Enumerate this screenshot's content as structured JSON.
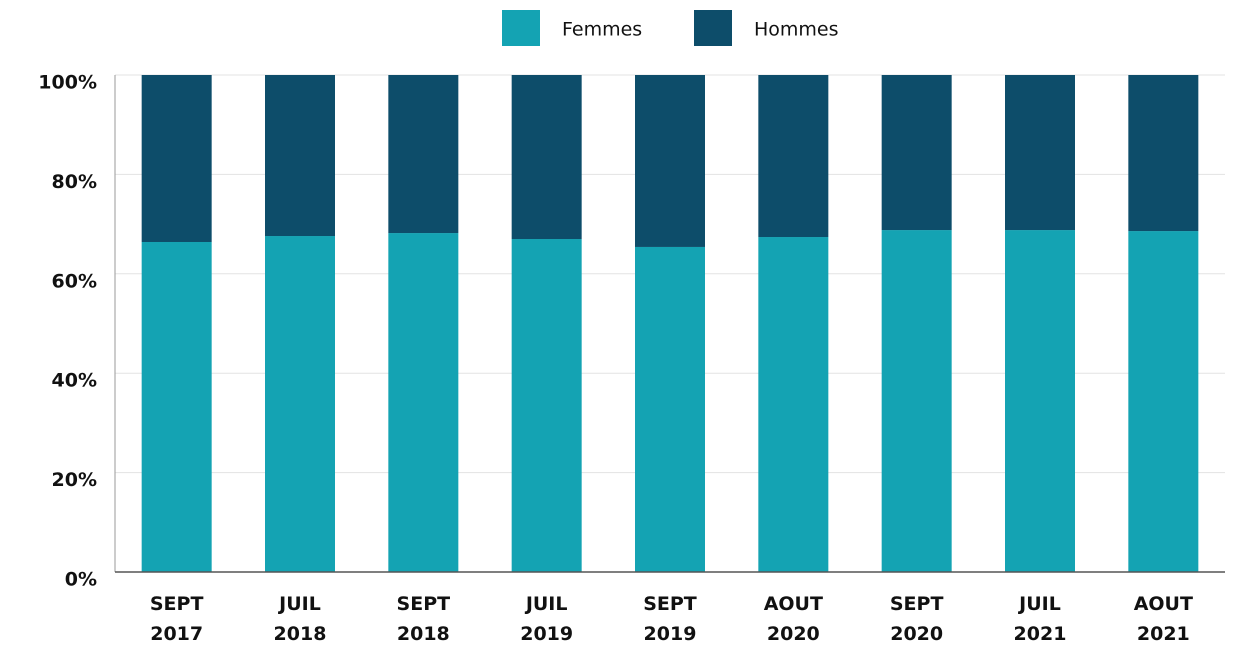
{
  "chart_data": {
    "type": "stacked_bar",
    "categories": [
      [
        "SEPT",
        "2017"
      ],
      [
        "JUIL",
        "2018"
      ],
      [
        "SEPT",
        "2018"
      ],
      [
        "JUIL",
        "2019"
      ],
      [
        "SEPT",
        "2019"
      ],
      [
        "AOUT",
        "2020"
      ],
      [
        "SEPT",
        "2020"
      ],
      [
        "JUIL",
        "2021"
      ],
      [
        "AOUT",
        "2021"
      ]
    ],
    "series": [
      {
        "name": "Femmes",
        "color": "#14a3b3",
        "values": [
          66.4,
          67.6,
          68.2,
          67.0,
          65.4,
          67.4,
          68.8,
          68.8,
          68.6
        ]
      },
      {
        "name": "Hommes",
        "color": "#0d4d6a",
        "values": [
          33.6,
          32.4,
          31.8,
          33.0,
          34.6,
          32.6,
          31.2,
          31.2,
          31.4
        ]
      }
    ],
    "ylim": [
      0,
      100
    ],
    "yticks": [
      {
        "value": 0,
        "label": "0%"
      },
      {
        "value": 20,
        "label": "20%"
      },
      {
        "value": 40,
        "label": "40%"
      },
      {
        "value": 60,
        "label": "60%"
      },
      {
        "value": 80,
        "label": "80%"
      },
      {
        "value": 100,
        "label": "100%"
      }
    ],
    "grid": true,
    "legend": "top"
  }
}
